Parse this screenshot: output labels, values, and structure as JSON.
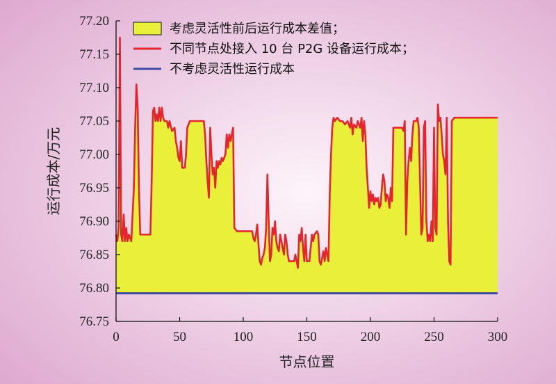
{
  "colors": {
    "background_center": "#fdf4fa",
    "background_edge": "#dea8cf",
    "fill": "#eaf03a",
    "red_line": "#e3262e",
    "blue_line": "#3c4aa0",
    "axis": "#111111"
  },
  "chart_data": {
    "type": "line",
    "xlabel": "节点位置",
    "ylabel": "运行成本/万元",
    "xlim": [
      0,
      300
    ],
    "ylim": [
      76.75,
      77.2
    ],
    "xticks": [
      "0",
      "50",
      "100",
      "150",
      "200",
      "250",
      "300"
    ],
    "yticks": [
      "76.75",
      "76.80",
      "76.85",
      "76.90",
      "76.95",
      "77.00",
      "77.05",
      "77.10",
      "77.15",
      "77.20"
    ],
    "grid": false,
    "legend_position": "top-left",
    "legend": [
      {
        "label": "考虑灵活性前后运行成本差值；",
        "kind": "fill"
      },
      {
        "label": "不同节点处接入 10 台 P2G 设备运行成本；",
        "kind": "red-line"
      },
      {
        "label": "不考虑灵活性运行成本",
        "kind": "blue-line"
      }
    ],
    "baseline_value": 76.792,
    "series": [
      {
        "name": "不同节点处接入 10 台 P2G 设备运行成本；",
        "points": [
          [
            0,
            76.88
          ],
          [
            1,
            76.87
          ],
          [
            2,
            76.89
          ],
          [
            3,
            77.175
          ],
          [
            4,
            76.88
          ],
          [
            5,
            76.87
          ],
          [
            6,
            76.91
          ],
          [
            7,
            76.87
          ],
          [
            8,
            76.89
          ],
          [
            9,
            76.87
          ],
          [
            10,
            76.88
          ],
          [
            12,
            76.87
          ],
          [
            14,
            76.95
          ],
          [
            15,
            77.04
          ],
          [
            16,
            77.105
          ],
          [
            17,
            77.07
          ],
          [
            18,
            76.95
          ],
          [
            19,
            76.88
          ],
          [
            20,
            76.88
          ],
          [
            27,
            76.88
          ],
          [
            28,
            76.96
          ],
          [
            29,
            77.065
          ],
          [
            30,
            77.07
          ],
          [
            31,
            77.05
          ],
          [
            32,
            77.06
          ],
          [
            33,
            77.05
          ],
          [
            34,
            77.07
          ],
          [
            35,
            77.05
          ],
          [
            36,
            77.07
          ],
          [
            37,
            77.055
          ],
          [
            38,
            77.05
          ],
          [
            40,
            77.05
          ],
          [
            41,
            77.04
          ],
          [
            42,
            77.05
          ],
          [
            44,
            77.035
          ],
          [
            46,
            77.04
          ],
          [
            47,
            77.02
          ],
          [
            48,
            77.01
          ],
          [
            49,
            76.995
          ],
          [
            50,
            76.99
          ],
          [
            51,
            77.02
          ],
          [
            52,
            76.98
          ],
          [
            54,
            76.98
          ],
          [
            55,
            77.0
          ],
          [
            56,
            77.04
          ],
          [
            58,
            77.05
          ],
          [
            60,
            77.05
          ],
          [
            65,
            77.05
          ],
          [
            69,
            77.05
          ],
          [
            70,
            77.03
          ],
          [
            71,
            76.99
          ],
          [
            72,
            76.96
          ],
          [
            73,
            76.935
          ],
          [
            74,
            77.04
          ],
          [
            75,
            77.0
          ],
          [
            76,
            76.97
          ],
          [
            77,
            76.98
          ],
          [
            78,
            76.95
          ],
          [
            79,
            76.99
          ],
          [
            80,
            76.98
          ],
          [
            81,
            76.99
          ],
          [
            82,
            76.985
          ],
          [
            83,
            76.995
          ],
          [
            84,
            76.99
          ],
          [
            86,
            77.0
          ],
          [
            87,
            77.03
          ],
          [
            88,
            77.01
          ],
          [
            89,
            77.03
          ],
          [
            90,
            77.02
          ],
          [
            92,
            77.04
          ],
          [
            93,
            76.89
          ],
          [
            95,
            76.885
          ],
          [
            105,
            76.885
          ],
          [
            107,
            76.885
          ],
          [
            108,
            76.875
          ],
          [
            109,
            76.87
          ],
          [
            110,
            76.88
          ],
          [
            111,
            76.895
          ],
          [
            112,
            76.865
          ],
          [
            113,
            76.84
          ],
          [
            114,
            76.835
          ],
          [
            115,
            76.845
          ],
          [
            116,
            76.85
          ],
          [
            117,
            76.86
          ],
          [
            118,
            76.89
          ],
          [
            119,
            76.97
          ],
          [
            120,
            76.9
          ],
          [
            121,
            76.84
          ],
          [
            122,
            76.85
          ],
          [
            123,
            76.89
          ],
          [
            124,
            76.88
          ],
          [
            125,
            76.9
          ],
          [
            126,
            76.87
          ],
          [
            127,
            76.86
          ],
          [
            128,
            76.855
          ],
          [
            129,
            76.88
          ],
          [
            130,
            76.87
          ],
          [
            131,
            76.86
          ],
          [
            132,
            76.85
          ],
          [
            133,
            76.88
          ],
          [
            134,
            76.87
          ],
          [
            135,
            76.85
          ],
          [
            136,
            76.84
          ],
          [
            140,
            76.84
          ],
          [
            141,
            76.85
          ],
          [
            142,
            76.84
          ],
          [
            143,
            76.83
          ],
          [
            144,
            76.88
          ],
          [
            145,
            76.87
          ],
          [
            146,
            76.89
          ],
          [
            147,
            76.86
          ],
          [
            148,
            76.84
          ],
          [
            149,
            76.88
          ],
          [
            150,
            76.84
          ],
          [
            152,
            76.84
          ],
          [
            154,
            76.88
          ],
          [
            155,
            76.87
          ],
          [
            156,
            76.88
          ],
          [
            158,
            76.885
          ],
          [
            159,
            76.88
          ],
          [
            160,
            76.84
          ],
          [
            161,
            76.835
          ],
          [
            162,
            76.845
          ],
          [
            163,
            76.855
          ],
          [
            164,
            76.84
          ],
          [
            165,
            76.86
          ],
          [
            166,
            76.85
          ],
          [
            167,
            76.84
          ],
          [
            168,
            76.94
          ],
          [
            169,
            77.0
          ],
          [
            170,
            77.04
          ],
          [
            171,
            77.055
          ],
          [
            172,
            77.05
          ],
          [
            174,
            77.055
          ],
          [
            176,
            77.05
          ],
          [
            178,
            77.05
          ],
          [
            180,
            77.045
          ],
          [
            182,
            77.05
          ],
          [
            184,
            77.04
          ],
          [
            185,
            77.055
          ],
          [
            186,
            77.03
          ],
          [
            187,
            77.045
          ],
          [
            189,
            77.04
          ],
          [
            190,
            77.05
          ],
          [
            192,
            77.04
          ],
          [
            193,
            77.055
          ],
          [
            194,
            77.02
          ],
          [
            195,
            77.05
          ],
          [
            196,
            77.03
          ],
          [
            197,
            76.98
          ],
          [
            198,
            76.95
          ],
          [
            199,
            76.92
          ],
          [
            200,
            76.945
          ],
          [
            201,
            76.93
          ],
          [
            202,
            76.94
          ],
          [
            203,
            76.925
          ],
          [
            204,
            76.935
          ],
          [
            205,
            76.93
          ],
          [
            206,
            76.935
          ],
          [
            207,
            76.92
          ],
          [
            208,
            76.925
          ],
          [
            209,
            76.95
          ],
          [
            210,
            76.97
          ],
          [
            211,
            76.96
          ],
          [
            212,
            76.93
          ],
          [
            213,
            76.94
          ],
          [
            214,
            76.935
          ],
          [
            215,
            76.92
          ],
          [
            216,
            76.95
          ],
          [
            217,
            76.93
          ],
          [
            218,
            77.04
          ],
          [
            220,
            77.04
          ],
          [
            221,
            77.04
          ],
          [
            223,
            77.04
          ],
          [
            224,
            77.04
          ],
          [
            225,
            77.04
          ],
          [
            226,
            77.035
          ],
          [
            227,
            77.05
          ],
          [
            228,
            76.88
          ],
          [
            229,
            76.96
          ],
          [
            230,
            76.99
          ],
          [
            231,
            77.01
          ],
          [
            232,
            76.99
          ],
          [
            233,
            77.03
          ],
          [
            234,
            77.05
          ],
          [
            236,
            77.05
          ],
          [
            237,
            77.055
          ],
          [
            238,
            77.04
          ],
          [
            240,
            76.88
          ],
          [
            241,
            76.89
          ],
          [
            242,
            77.04
          ],
          [
            243,
            77.05
          ],
          [
            244,
            76.9
          ],
          [
            245,
            76.87
          ],
          [
            246,
            76.88
          ],
          [
            247,
            76.87
          ],
          [
            248,
            76.9
          ],
          [
            249,
            76.87
          ],
          [
            250,
            77.04
          ],
          [
            251,
            76.89
          ],
          [
            252,
            76.88
          ],
          [
            253,
            77.075
          ],
          [
            254,
            77.05
          ],
          [
            255,
            77.055
          ],
          [
            256,
            77.03
          ],
          [
            257,
            77.0
          ],
          [
            258,
            76.99
          ],
          [
            259,
            76.97
          ],
          [
            260,
            77.055
          ],
          [
            261,
            76.9
          ],
          [
            262,
            76.84
          ],
          [
            263,
            76.835
          ],
          [
            264,
            77.05
          ],
          [
            266,
            77.055
          ],
          [
            270,
            77.055
          ],
          [
            280,
            77.055
          ],
          [
            290,
            77.055
          ],
          [
            300,
            77.055
          ]
        ]
      },
      {
        "name": "不考虑灵活性运行成本",
        "points": [
          [
            0,
            76.792
          ],
          [
            300,
            76.792
          ]
        ]
      }
    ]
  }
}
